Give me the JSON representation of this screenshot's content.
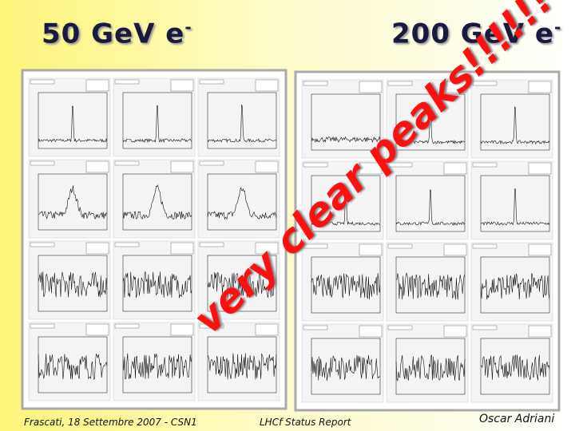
{
  "slide": {
    "titles": [
      {
        "text": "50 GeV e",
        "sup": "-"
      },
      {
        "text": "200 GeV e",
        "sup": "-"
      }
    ],
    "annotation": "very clear peaks!!!!!!",
    "footer": {
      "left": "Frascati, 18 Settembre 2007 - CSN1",
      "center": "LHCf Status Report",
      "right": "Oscar Adriani"
    }
  }
}
